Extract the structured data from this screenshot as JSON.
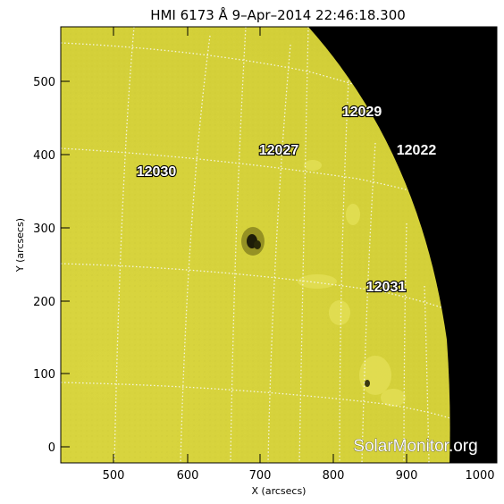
{
  "title": "HMI 6173 Å  9–Apr–2014 22:46:18.300",
  "axes": {
    "xlabel": "X (arcsecs)",
    "ylabel": "Y (arcsecs)",
    "x_ticks": [
      "500",
      "600",
      "700",
      "800",
      "900",
      "1000"
    ],
    "y_ticks": [
      "0",
      "100",
      "200",
      "300",
      "400",
      "500"
    ]
  },
  "regions": [
    {
      "label": "12029"
    },
    {
      "label": "12027"
    },
    {
      "label": "12022"
    },
    {
      "label": "12030"
    },
    {
      "label": "12031"
    }
  ],
  "watermark": "SolarMonitor.org",
  "colors": {
    "disk": "#d6d23c",
    "space": "#000000",
    "grid": "#f5f5e0"
  }
}
